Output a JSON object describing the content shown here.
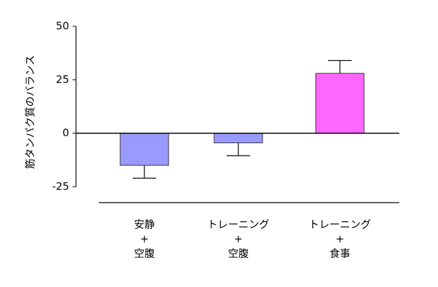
{
  "chart_data": {
    "type": "bar",
    "ylabel": "筋タンパク質のバランス",
    "categories": [
      [
        "安静",
        "+",
        "空腹"
      ],
      [
        "トレーニング",
        "+",
        "空腹"
      ],
      [
        "トレーニング",
        "+",
        "食事"
      ]
    ],
    "values": [
      -15,
      -4.5,
      28
    ],
    "errors": [
      6,
      6,
      6
    ],
    "colors": [
      "#9999ff",
      "#9999ff",
      "#ff66ff"
    ],
    "ylim": [
      -25,
      50
    ],
    "yticks": [
      -25,
      0,
      25,
      50
    ]
  }
}
